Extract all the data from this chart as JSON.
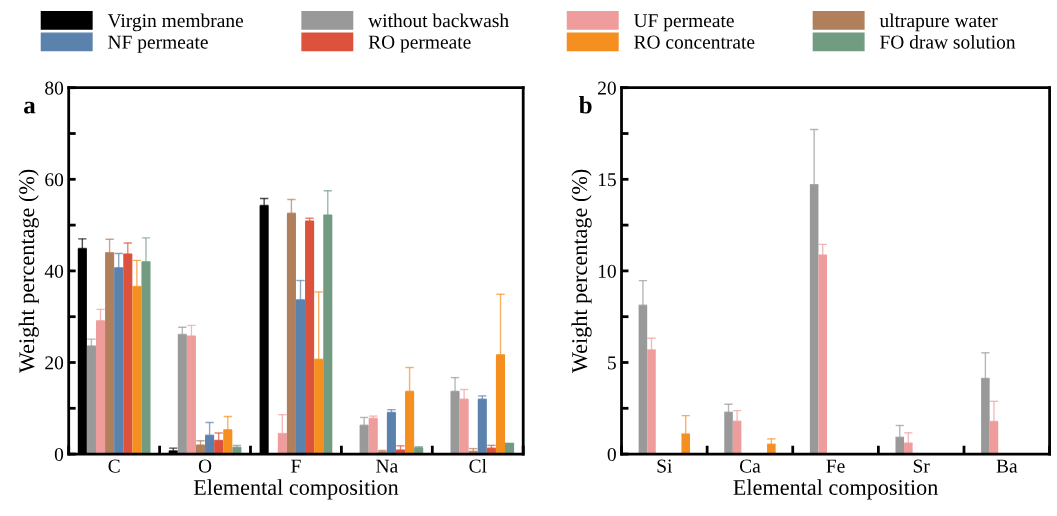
{
  "chart_data": [
    {
      "type": "bar",
      "title": "a",
      "xlabel": "Elemental composition",
      "ylabel": "Weight percentage (%)",
      "categories": [
        "C",
        "O",
        "F",
        "Na",
        "Cl"
      ],
      "ylim": [
        0,
        80
      ],
      "yticks": [
        0,
        {
          "value": 10,
          "label": null
        },
        20,
        {
          "value": 30,
          "label": null
        },
        40,
        {
          "value": 50,
          "label": null
        },
        60,
        {
          "value": 70,
          "label": null
        },
        80
      ],
      "legend": "top",
      "series": [
        {
          "name": "Virgin membrane",
          "color": "#000000",
          "values": [
            44.9,
            0.7,
            54.3,
            null,
            null
          ],
          "errors": [
            [
              44.9,
              47.0
            ],
            [
              0.7,
              1.3
            ],
            [
              54.3,
              55.8
            ],
            null,
            null
          ]
        },
        {
          "name": "without backwash",
          "color": "#999999",
          "values": [
            23.6,
            26.1,
            null,
            6.3,
            13.7
          ],
          "errors": [
            [
              23.6,
              25.1
            ],
            [
              26.1,
              27.7
            ],
            null,
            [
              6.3,
              8.0
            ],
            [
              13.7,
              16.7
            ]
          ]
        },
        {
          "name": "UF permeate",
          "color": "#ef9c9c",
          "values": [
            29.1,
            25.8,
            4.5,
            7.8,
            12.0
          ],
          "errors": [
            [
              29.1,
              31.6
            ],
            [
              25.8,
              28.1
            ],
            [
              4.5,
              8.6
            ],
            [
              7.8,
              8.3
            ],
            [
              12.0,
              14.1
            ]
          ]
        },
        {
          "name": "ultrapure water",
          "color": "#b0805c",
          "values": [
            44.0,
            2.0,
            52.6,
            0.5,
            0.6
          ],
          "errors": [
            [
              44.0,
              46.9
            ],
            [
              2.0,
              2.9
            ],
            [
              52.6,
              55.6
            ],
            [
              0.5,
              0.8
            ],
            [
              0.6,
              1.2
            ]
          ]
        },
        {
          "name": "NF permeate",
          "color": "#5b82ad",
          "values": [
            40.7,
            4.1,
            33.7,
            9.1,
            12.0
          ],
          "errors": [
            [
              40.7,
              43.8
            ],
            [
              4.1,
              6.9
            ],
            [
              33.7,
              37.9
            ],
            [
              9.1,
              9.7
            ],
            [
              12.0,
              12.7
            ]
          ]
        },
        {
          "name": "RO permeate",
          "color": "#dd523c",
          "values": [
            43.7,
            3.0,
            50.9,
            0.9,
            1.3
          ],
          "errors": [
            [
              43.7,
              46.1
            ],
            [
              3.0,
              4.6
            ],
            [
              50.9,
              51.5
            ],
            [
              0.9,
              1.8
            ],
            [
              1.3,
              1.9
            ]
          ]
        },
        {
          "name": "RO concentrate",
          "color": "#f58f1f",
          "values": [
            36.6,
            5.3,
            20.7,
            13.7,
            21.7
          ],
          "errors": [
            [
              36.6,
              42.3
            ],
            [
              5.3,
              8.2
            ],
            [
              20.7,
              35.4
            ],
            [
              13.7,
              18.9
            ],
            [
              21.7,
              34.9
            ]
          ]
        },
        {
          "name": "FO draw solution",
          "color": "#729c82",
          "values": [
            42.0,
            1.5,
            52.2,
            1.4,
            2.5
          ],
          "errors": [
            [
              42.0,
              47.2
            ],
            [
              1.5,
              1.9
            ],
            [
              52.2,
              57.5
            ],
            [
              1.4,
              1.6
            ],
            null
          ]
        }
      ]
    },
    {
      "type": "bar",
      "title": "b",
      "xlabel": "Elemental composition",
      "ylabel": "Weight percentage (%)",
      "categories": [
        "Si",
        "Ca",
        "Fe",
        "Sr",
        "Ba"
      ],
      "ylim": [
        0,
        20
      ],
      "yticks": [
        0,
        {
          "value": 2.5,
          "label": null
        },
        5,
        {
          "value": 7.5,
          "label": null
        },
        10,
        {
          "value": 12.5,
          "label": null
        },
        15,
        {
          "value": 17.5,
          "label": null
        },
        20
      ],
      "series": [
        {
          "values": [
            null,
            null,
            null,
            null,
            null
          ]
        },
        {
          "color": "#999999",
          "values": [
            8.13,
            2.28,
            14.71,
            0.92,
            4.13
          ],
          "errors": [
            [
              8.13,
              9.47
            ],
            [
              2.28,
              2.72
            ],
            [
              14.71,
              17.72
            ],
            [
              0.92,
              1.56
            ],
            [
              4.13,
              5.53
            ]
          ]
        },
        {
          "color": "#ef9c9c",
          "values": [
            5.69,
            1.79,
            10.87,
            0.6,
            1.78
          ],
          "errors": [
            [
              5.69,
              6.32
            ],
            [
              1.79,
              2.37
            ],
            [
              10.87,
              11.45
            ],
            [
              0.6,
              1.16
            ],
            [
              1.78,
              2.88
            ]
          ]
        },
        {
          "values": [
            null,
            null,
            null,
            null,
            null
          ]
        },
        {
          "values": [
            null,
            null,
            null,
            null,
            null
          ]
        },
        {
          "values": [
            null,
            null,
            null,
            null,
            null
          ]
        },
        {
          "color": "#f58f1f",
          "values": [
            1.1,
            0.54,
            null,
            null,
            null
          ],
          "errors": [
            [
              1.1,
              2.1
            ],
            [
              0.54,
              0.83
            ],
            null,
            null,
            null
          ]
        },
        {
          "values": [
            null,
            null,
            null,
            null,
            null
          ]
        }
      ]
    }
  ]
}
